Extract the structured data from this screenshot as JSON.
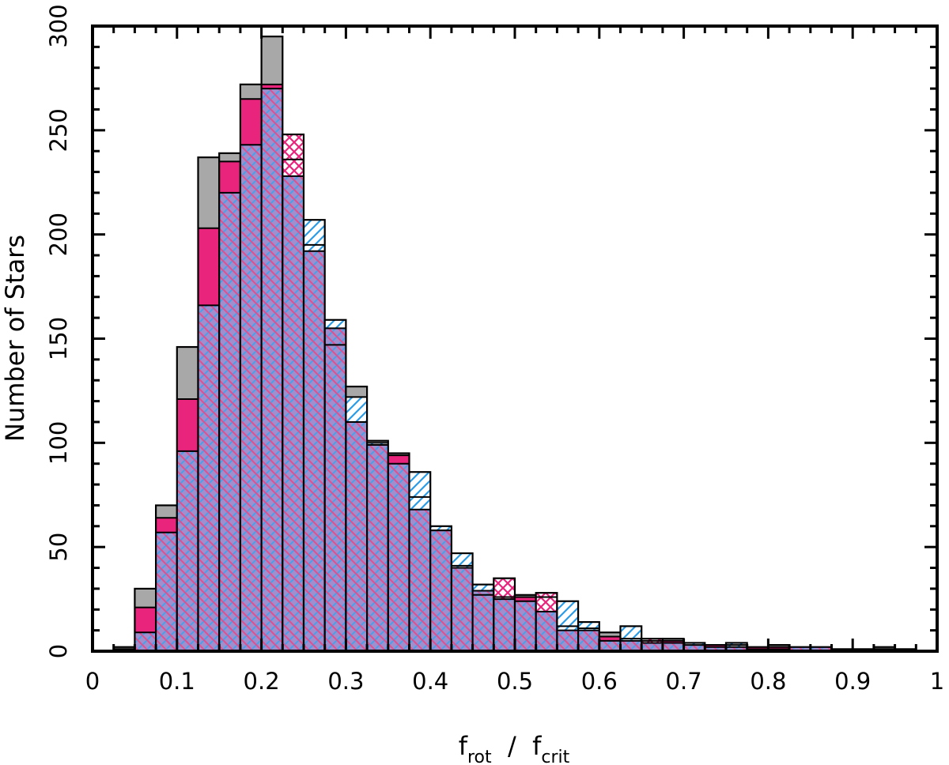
{
  "chart_data": {
    "type": "bar",
    "title": "",
    "xlabel": {
      "main1": "f",
      "sub1": "rot",
      "sep": "  /  ",
      "main2": "f",
      "sub2": "crit"
    },
    "ylabel": "Number of Stars",
    "xlim": [
      0,
      1
    ],
    "ylim": [
      0,
      300
    ],
    "x_ticks": [
      "0",
      "0.1",
      "0.2",
      "0.3",
      "0.4",
      "0.5",
      "0.6",
      "0.7",
      "0.8",
      "0.9",
      "1"
    ],
    "x_tick_values": [
      0,
      0.1,
      0.2,
      0.3,
      0.4,
      0.5,
      0.6,
      0.7,
      0.8,
      0.9,
      1
    ],
    "y_ticks": [
      "0",
      "50",
      "100",
      "150",
      "200",
      "250",
      "300"
    ],
    "y_tick_values": [
      0,
      50,
      100,
      150,
      200,
      250,
      300
    ],
    "bin_width": 0.025,
    "bin_starts": [
      0.025,
      0.05,
      0.075,
      0.1,
      0.125,
      0.15,
      0.175,
      0.2,
      0.225,
      0.25,
      0.275,
      0.3,
      0.325,
      0.35,
      0.375,
      0.4,
      0.425,
      0.45,
      0.475,
      0.5,
      0.525,
      0.55,
      0.575,
      0.6,
      0.625,
      0.65,
      0.675,
      0.7,
      0.725,
      0.75,
      0.775,
      0.8,
      0.825,
      0.85,
      0.875,
      0.9,
      0.925,
      0.95
    ],
    "series": [
      {
        "style": "gray",
        "values": [
          2,
          30,
          70,
          146,
          237,
          239,
          272,
          295,
          236,
          195,
          147,
          127,
          101,
          95,
          74,
          58,
          41,
          27,
          26,
          27,
          26,
          12,
          11,
          9,
          6,
          5,
          6,
          4,
          3,
          3,
          2,
          3,
          2,
          2,
          1,
          1,
          2,
          1
        ]
      },
      {
        "style": "magenta-crosshatch",
        "values": [
          1,
          21,
          64,
          121,
          203,
          235,
          265,
          272,
          248,
          192,
          155,
          110,
          99,
          94,
          68,
          58,
          40,
          29,
          35,
          26,
          28,
          10,
          10,
          7,
          5,
          6,
          5,
          3,
          3,
          2,
          2,
          2,
          2,
          2,
          1,
          1,
          1,
          1
        ]
      },
      {
        "style": "blue-hatch",
        "values": [
          1,
          9,
          57,
          96,
          166,
          220,
          243,
          270,
          228,
          207,
          159,
          122,
          100,
          90,
          86,
          60,
          47,
          32,
          25,
          24,
          19,
          24,
          14,
          5,
          12,
          4,
          4,
          4,
          2,
          4,
          1,
          1,
          2,
          2,
          1,
          1,
          1,
          1
        ]
      }
    ],
    "colors": {
      "gray": "#a8a8a8",
      "magenta": "#e8247c",
      "blue": "#2a9be8",
      "overlap_fill": "#9e8fcf"
    }
  }
}
